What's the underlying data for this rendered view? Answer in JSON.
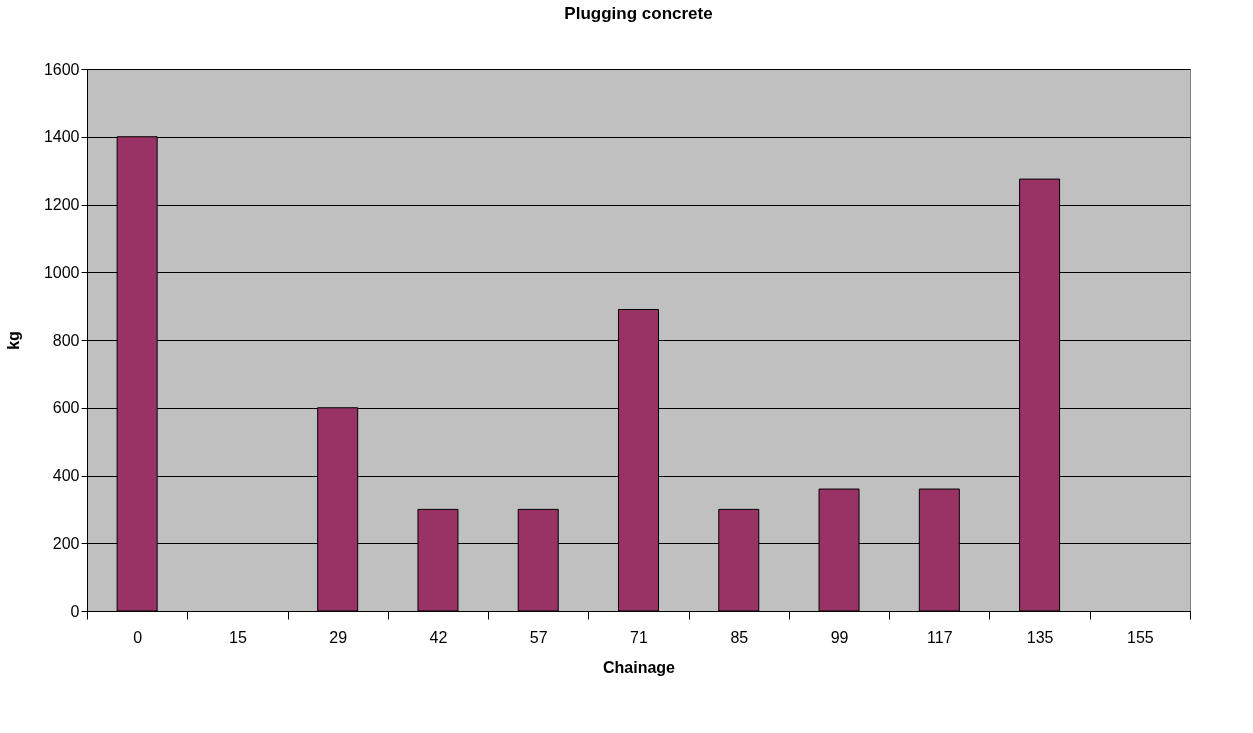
{
  "chart_data": {
    "type": "bar",
    "title": "Plugging concrete",
    "xlabel": "Chainage",
    "ylabel": "kg",
    "categories": [
      "0",
      "15",
      "29",
      "42",
      "57",
      "71",
      "85",
      "99",
      "117",
      "135",
      "155"
    ],
    "values": [
      1400,
      null,
      600,
      300,
      300,
      890,
      300,
      360,
      360,
      1275,
      null
    ],
    "color": "#993366",
    "ylim": [
      0,
      1600
    ],
    "yticks": [
      0,
      200,
      400,
      600,
      800,
      1000,
      1200,
      1400,
      1600
    ],
    "grid": "y"
  }
}
